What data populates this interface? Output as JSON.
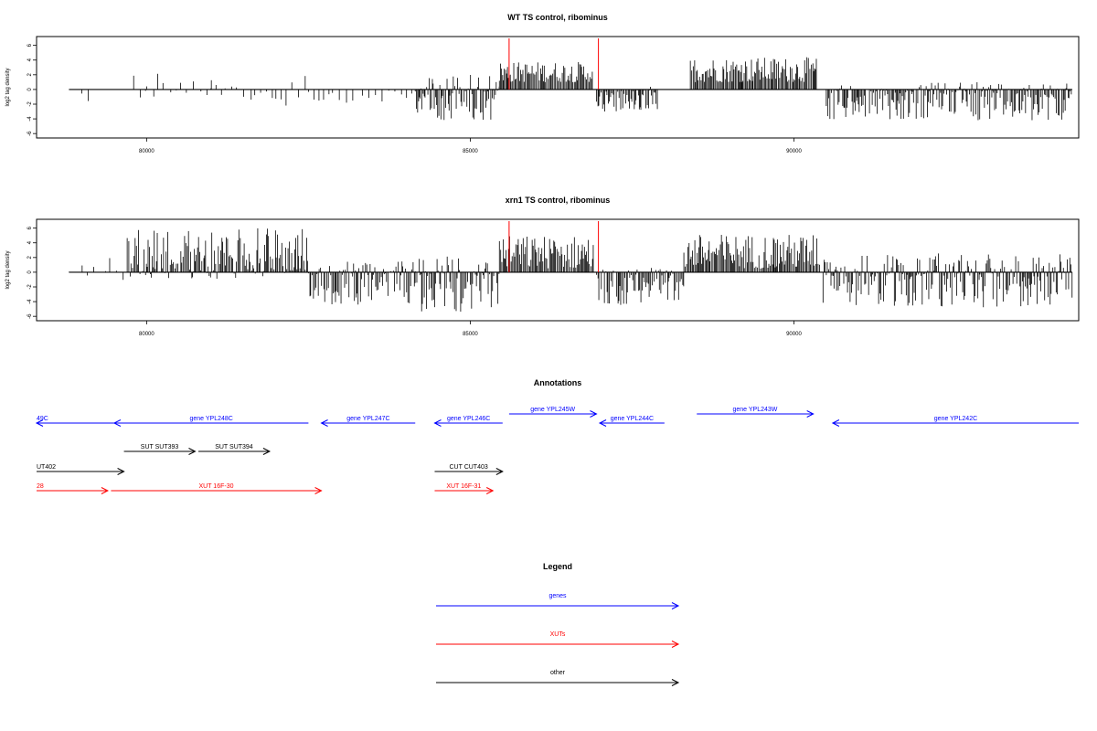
{
  "chart_data": [
    {
      "type": "bar",
      "title": "WT TS control, ribominus",
      "xlabel": "",
      "ylabel": "log2 tag density",
      "xlim": [
        78300,
        94400
      ],
      "ylim": [
        -6.6,
        7.2
      ],
      "x_ticks": [
        80000,
        85000,
        90000
      ],
      "y_ticks": [
        6,
        4,
        2,
        0,
        -2,
        -4,
        -6
      ],
      "grid": false,
      "red_markers_x": [
        85600,
        86980
      ],
      "bars": [
        {
          "x": [
            79000,
            79100
          ],
          "values": [
            -2.6,
            1.8
          ],
          "density": "sparse"
        },
        {
          "x": [
            79800,
            80000
          ],
          "values": [
            -1.6,
            2.2
          ],
          "density": "sparse"
        },
        {
          "x": [
            80000,
            81000
          ],
          "values": [
            -1.2,
            3.2
          ],
          "density": "sparse"
        },
        {
          "x": [
            81000,
            82500
          ],
          "values": [
            -2.2,
            2.0
          ],
          "density": "sparse"
        },
        {
          "x": [
            82500,
            84100
          ],
          "values": [
            -1.8,
            0.0
          ],
          "density": "sparse"
        },
        {
          "x": [
            84150,
            85450
          ],
          "values": [
            -4.2,
            2.0
          ],
          "density": "dense"
        },
        {
          "x": [
            85450,
            86900
          ],
          "values": [
            1.0,
            3.8
          ],
          "density": "dense"
        },
        {
          "x": [
            86950,
            87900
          ],
          "values": [
            -3.0,
            0.5
          ],
          "density": "dense"
        },
        {
          "x": [
            88400,
            90350
          ],
          "values": [
            1.0,
            4.4
          ],
          "density": "dense"
        },
        {
          "x": [
            90500,
            94300
          ],
          "values": [
            -4.2,
            1.0
          ],
          "density": "dense"
        }
      ]
    },
    {
      "type": "bar",
      "title": "xrn1 TS control, ribominus",
      "xlabel": "",
      "ylabel": "log2 tag density",
      "xlim": [
        78300,
        94400
      ],
      "ylim": [
        -6.6,
        7.2
      ],
      "x_ticks": [
        80000,
        85000,
        90000
      ],
      "y_ticks": [
        6,
        4,
        2,
        0,
        -2,
        -4,
        -6
      ],
      "grid": false,
      "red_markers_x": [
        85600,
        86980
      ],
      "bars": [
        {
          "x": [
            78800,
            79700
          ],
          "values": [
            -1.2,
            2.0
          ],
          "density": "sparse"
        },
        {
          "x": [
            79700,
            82500
          ],
          "values": [
            -1.0,
            6.0
          ],
          "density": "dense"
        },
        {
          "x": [
            82500,
            84150
          ],
          "values": [
            -4.4,
            1.5
          ],
          "density": "dense"
        },
        {
          "x": [
            84150,
            85450
          ],
          "values": [
            -5.4,
            2.2
          ],
          "density": "dense"
        },
        {
          "x": [
            85450,
            86900
          ],
          "values": [
            0.5,
            5.0
          ],
          "density": "dense"
        },
        {
          "x": [
            86950,
            88300
          ],
          "values": [
            -4.5,
            0.6
          ],
          "density": "dense"
        },
        {
          "x": [
            88300,
            90400
          ],
          "values": [
            0.5,
            5.2
          ],
          "density": "dense"
        },
        {
          "x": [
            90450,
            94300
          ],
          "values": [
            -4.8,
            2.6
          ],
          "density": "dense"
        }
      ]
    }
  ],
  "annotations": {
    "title": "Annotations",
    "features": [
      {
        "label": "49C",
        "x1": 78300,
        "x2": 79500,
        "dir": "left",
        "row": 1,
        "color": "#0000ff",
        "label_pos": "start"
      },
      {
        "label": "gene YPL248C",
        "x1": 79500,
        "x2": 82500,
        "dir": "left",
        "row": 1,
        "color": "#0000ff"
      },
      {
        "label": "gene YPL247C",
        "x1": 82700,
        "x2": 84150,
        "dir": "left",
        "row": 1,
        "color": "#0000ff"
      },
      {
        "label": "gene YPL246C",
        "x1": 84450,
        "x2": 85500,
        "dir": "left",
        "row": 1,
        "color": "#0000ff"
      },
      {
        "label": "gene YPL245W",
        "x1": 85600,
        "x2": 86950,
        "dir": "right",
        "row": 0,
        "color": "#0000ff"
      },
      {
        "label": "gene YPL244C",
        "x1": 87000,
        "x2": 88000,
        "dir": "left",
        "row": 1,
        "color": "#0000ff"
      },
      {
        "label": "gene YPL243W",
        "x1": 88500,
        "x2": 90300,
        "dir": "right",
        "row": 0,
        "color": "#0000ff"
      },
      {
        "label": "gene YPL242C",
        "x1": 90600,
        "x2": 94400,
        "dir": "left",
        "row": 1,
        "color": "#0000ff"
      },
      {
        "label": "SUT SUT393",
        "x1": 79650,
        "x2": 80750,
        "dir": "right",
        "row": 2,
        "color": "#000000"
      },
      {
        "label": "SUT SUT394",
        "x1": 80800,
        "x2": 81900,
        "dir": "right",
        "row": 2,
        "color": "#000000"
      },
      {
        "label": "UT402",
        "x1": 78300,
        "x2": 79650,
        "dir": "right",
        "row": 3,
        "color": "#000000",
        "label_pos": "start"
      },
      {
        "label": "CUT CUT403",
        "x1": 84450,
        "x2": 85500,
        "dir": "right",
        "row": 3,
        "color": "#000000"
      },
      {
        "label": "28",
        "x1": 78300,
        "x2": 79400,
        "dir": "right",
        "row": 4,
        "color": "#ff0000",
        "label_pos": "start"
      },
      {
        "label": "XUT 16F-30",
        "x1": 79450,
        "x2": 82700,
        "dir": "right",
        "row": 4,
        "color": "#ff0000"
      },
      {
        "label": "XUT 16F-31",
        "x1": 84450,
        "x2": 85350,
        "dir": "right",
        "row": 4,
        "color": "#ff0000"
      }
    ]
  },
  "legend": {
    "title": "Legend",
    "items": [
      {
        "label": "genes",
        "color": "#0000ff"
      },
      {
        "label": "XUTs",
        "color": "#ff0000"
      },
      {
        "label": "other",
        "color": "#000000"
      }
    ]
  }
}
